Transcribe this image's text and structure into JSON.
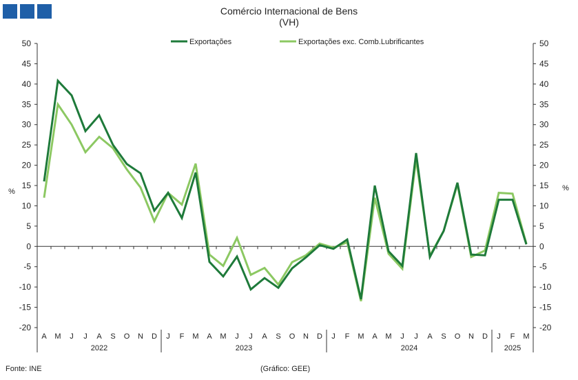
{
  "header": {
    "title": "Comércio Internacional de Bens",
    "subtitle": "(VH)"
  },
  "footer": {
    "source": "Fonte: INE",
    "credit": "(Gráfico: GEE)"
  },
  "colors": {
    "logo": "#1f5fa8",
    "exportacoes": "#1e7a3a",
    "exc_comb": "#8cc862"
  },
  "chart_data": {
    "type": "line",
    "unit_left": "%",
    "unit_right": "%",
    "ylim": [
      -20,
      50
    ],
    "yticks": [
      -20,
      -15,
      -10,
      -5,
      0,
      5,
      10,
      15,
      20,
      25,
      30,
      35,
      40,
      45,
      50
    ],
    "legend_position": "top-center",
    "grid": false,
    "categories": [
      "A",
      "M",
      "J",
      "J",
      "A",
      "S",
      "O",
      "N",
      "D",
      "J",
      "F",
      "M",
      "A",
      "M",
      "J",
      "J",
      "A",
      "S",
      "O",
      "N",
      "D",
      "J",
      "F",
      "M",
      "A",
      "M",
      "J",
      "J",
      "A",
      "S",
      "O",
      "N",
      "D",
      "J",
      "F",
      "M"
    ],
    "years": [
      {
        "label": "2022",
        "count": 9
      },
      {
        "label": "2023",
        "count": 12
      },
      {
        "label": "2024",
        "count": 12
      },
      {
        "label": "2025",
        "count": 3
      }
    ],
    "series": [
      {
        "name": "Exportações",
        "color": "#1e7a3a",
        "values": [
          16,
          40.8,
          37.2,
          28.4,
          32.3,
          25,
          20.3,
          18,
          8.8,
          13.2,
          7,
          18.2,
          -3.8,
          -7.4,
          -2.5,
          -10.6,
          -7.8,
          -10.2,
          -5.4,
          -2.7,
          0.3,
          -0.6,
          1.7,
          -13,
          15,
          -1.2,
          -4.8,
          23,
          -2.6,
          3.8,
          15.7,
          -2,
          -2.2,
          11.5,
          11.5,
          0.5
        ]
      },
      {
        "name": "Exportações exc. Comb.Lubrificantes",
        "color": "#8cc862",
        "values": [
          12,
          35,
          30,
          23.2,
          27,
          24.2,
          19,
          14.5,
          6.2,
          13.2,
          10.3,
          20.4,
          -2,
          -4.8,
          2.1,
          -7,
          -5.3,
          -9.4,
          -3.9,
          -2.2,
          0.7,
          -0.3,
          1,
          -13.5,
          12,
          -1.8,
          -5.5,
          21.5,
          -2.3,
          3.8,
          15.3,
          -2.6,
          -1,
          13.2,
          13,
          0.7
        ]
      }
    ]
  }
}
